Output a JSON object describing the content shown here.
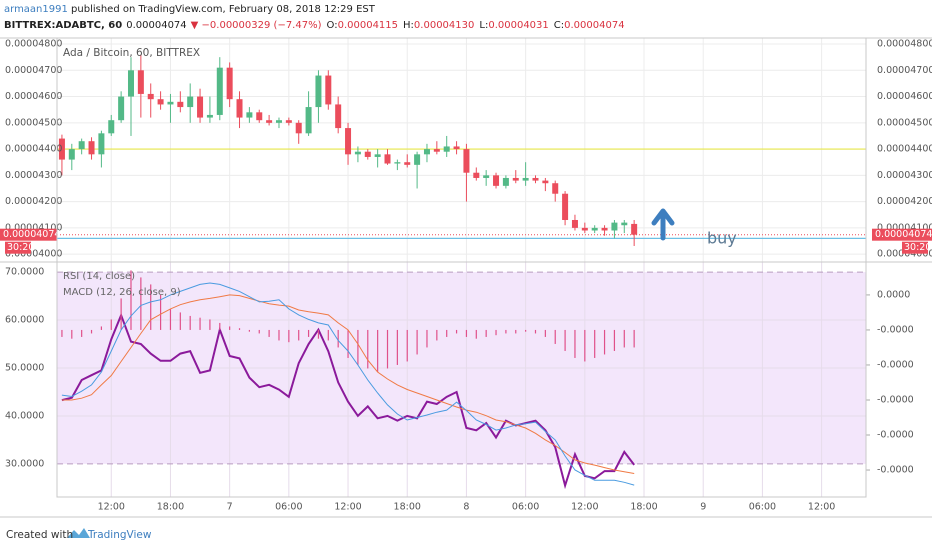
{
  "header": {
    "author": "armaan1991",
    "published": " published on TradingView.com, February 08, 2018 12:29 EST",
    "quote": {
      "symbol": "BITTREX:ADABTC, 60",
      "last": "0.00004074",
      "change": "▼ −0.00000329 (−7.47%)",
      "fields": [
        {
          "label": "O:",
          "value": "0.00004115"
        },
        {
          "label": "H:",
          "value": "0.00004130"
        },
        {
          "label": "L:",
          "value": "0.00004031"
        },
        {
          "label": "C:",
          "value": "0.00004074"
        }
      ]
    }
  },
  "footer": {
    "created": "Created with",
    "brand": "TradingView"
  },
  "chart_data": [
    {
      "type": "candlestick",
      "title": "Ada / Bitcoin, 60, BITTREX",
      "countdown": "30:20",
      "annotations": [
        {
          "text": "buy"
        }
      ],
      "categories": [
        null,
        null,
        null,
        null,
        null,
        "12:00",
        null,
        null,
        null,
        null,
        null,
        "18:00",
        null,
        null,
        null,
        null,
        null,
        "7",
        null,
        null,
        null,
        null,
        null,
        "06:00",
        null,
        null,
        null,
        null,
        null,
        "12:00",
        null,
        null,
        null,
        null,
        null,
        "18:00",
        null,
        null,
        null,
        null,
        null,
        "8",
        null,
        null,
        null,
        null,
        null,
        "06:00",
        null,
        null,
        null,
        null,
        null,
        "12:00",
        null,
        null,
        null,
        null,
        null,
        "18:00",
        null,
        null,
        null,
        null,
        null,
        "9",
        null,
        null,
        null,
        null,
        null,
        "06:00",
        null,
        null,
        null,
        null,
        null,
        "12:00",
        null,
        null,
        null,
        null
      ],
      "open": [
        4.44e-05,
        4.36e-05,
        4.4e-05,
        4.43e-05,
        4.38e-05,
        4.46e-05,
        4.51e-05,
        4.6e-05,
        4.7e-05,
        4.61e-05,
        4.59e-05,
        4.57e-05,
        4.58e-05,
        4.56e-05,
        4.6e-05,
        4.52e-05,
        4.53e-05,
        4.71e-05,
        4.59e-05,
        4.52e-05,
        4.54e-05,
        4.51e-05,
        4.5e-05,
        4.51e-05,
        4.5e-05,
        4.46e-05,
        4.56e-05,
        4.68e-05,
        4.57e-05,
        4.48e-05,
        4.38e-05,
        4.39e-05,
        4.37e-05,
        4.38e-05,
        4.345e-05,
        4.35e-05,
        4.34e-05,
        4.38e-05,
        4.4e-05,
        4.39e-05,
        4.41e-05,
        4.4e-05,
        4.31e-05,
        4.29e-05,
        4.3e-05,
        4.26e-05,
        4.29e-05,
        4.28e-05,
        4.29e-05,
        4.28e-05,
        4.27e-05,
        4.23e-05,
        4.13e-05,
        4.1e-05,
        4.09e-05,
        4.1e-05,
        4.09e-05,
        4.11e-05,
        4.115e-05,
        null,
        null,
        null,
        null,
        null,
        null,
        null,
        null,
        null,
        null,
        null,
        null,
        null,
        null,
        null,
        null,
        null,
        null,
        null,
        null,
        null,
        null,
        null
      ],
      "high": [
        4.455e-05,
        4.42e-05,
        4.44e-05,
        4.445e-05,
        4.47e-05,
        4.53e-05,
        4.62e-05,
        4.75e-05,
        4.76e-05,
        4.65e-05,
        4.62e-05,
        4.61e-05,
        4.62e-05,
        4.65e-05,
        4.63e-05,
        4.6e-05,
        4.75e-05,
        4.73e-05,
        4.62e-05,
        4.56e-05,
        4.55e-05,
        4.53e-05,
        4.52e-05,
        4.52e-05,
        4.51e-05,
        4.62e-05,
        4.7e-05,
        4.7e-05,
        4.6e-05,
        4.5e-05,
        4.41e-05,
        4.4e-05,
        4.4e-05,
        4.4e-05,
        4.36e-05,
        4.38e-05,
        4.39e-05,
        4.42e-05,
        4.43e-05,
        4.45e-05,
        4.43e-05,
        4.42e-05,
        4.33e-05,
        4.32e-05,
        4.31e-05,
        4.3e-05,
        4.32e-05,
        4.35e-05,
        4.3e-05,
        4.29e-05,
        4.28e-05,
        4.24e-05,
        4.15e-05,
        4.12e-05,
        4.11e-05,
        4.11e-05,
        4.13e-05,
        4.13e-05,
        4.13e-05,
        null,
        null,
        null,
        null,
        null,
        null,
        null,
        null,
        null,
        null,
        null,
        null,
        null,
        null,
        null,
        null,
        null,
        null,
        null,
        null,
        null,
        null,
        null
      ],
      "low": [
        4.3e-05,
        4.32e-05,
        4.38e-05,
        4.36e-05,
        4.33e-05,
        4.45e-05,
        4.5e-05,
        4.45e-05,
        4.52e-05,
        4.52e-05,
        4.55e-05,
        4.5e-05,
        4.54e-05,
        4.5e-05,
        4.5e-05,
        4.5e-05,
        4.51e-05,
        4.56e-05,
        4.48e-05,
        4.5e-05,
        4.5e-05,
        4.49e-05,
        4.48e-05,
        4.49e-05,
        4.42e-05,
        4.45e-05,
        4.5e-05,
        4.55e-05,
        4.46e-05,
        4.34e-05,
        4.35e-05,
        4.36e-05,
        4.33e-05,
        4.34e-05,
        4.32e-05,
        4.33e-05,
        4.25e-05,
        4.35e-05,
        4.38e-05,
        4.37e-05,
        4.38e-05,
        4.2e-05,
        4.28e-05,
        4.26e-05,
        4.25e-05,
        4.25e-05,
        4.27e-05,
        4.26e-05,
        4.27e-05,
        4.24e-05,
        4.2e-05,
        4.11e-05,
        4.09e-05,
        4.08e-05,
        4.08e-05,
        4.07e-05,
        4.06e-05,
        4.08e-05,
        4.031e-05,
        null,
        null,
        null,
        null,
        null,
        null,
        null,
        null,
        null,
        null,
        null,
        null,
        null,
        null,
        null,
        null,
        null,
        null,
        null,
        null,
        null,
        null,
        null
      ],
      "close": [
        4.36e-05,
        4.4e-05,
        4.43e-05,
        4.38e-05,
        4.46e-05,
        4.51e-05,
        4.6e-05,
        4.7e-05,
        4.61e-05,
        4.59e-05,
        4.57e-05,
        4.58e-05,
        4.56e-05,
        4.6e-05,
        4.52e-05,
        4.53e-05,
        4.71e-05,
        4.59e-05,
        4.52e-05,
        4.54e-05,
        4.51e-05,
        4.5e-05,
        4.51e-05,
        4.5e-05,
        4.46e-05,
        4.56e-05,
        4.68e-05,
        4.57e-05,
        4.48e-05,
        4.38e-05,
        4.39e-05,
        4.37e-05,
        4.38e-05,
        4.345e-05,
        4.35e-05,
        4.34e-05,
        4.38e-05,
        4.4e-05,
        4.39e-05,
        4.41e-05,
        4.4e-05,
        4.31e-05,
        4.29e-05,
        4.3e-05,
        4.26e-05,
        4.29e-05,
        4.28e-05,
        4.29e-05,
        4.28e-05,
        4.27e-05,
        4.23e-05,
        4.13e-05,
        4.1e-05,
        4.09e-05,
        4.1e-05,
        4.09e-05,
        4.12e-05,
        4.12e-05,
        4.074e-05,
        null,
        null,
        null,
        null,
        null,
        null,
        null,
        null,
        null,
        null,
        null,
        null,
        null,
        null,
        null,
        null,
        null,
        null,
        null,
        null,
        null,
        null,
        null
      ],
      "up_color": "#53b987",
      "down_color": "#eb4d5c",
      "hlines": [
        {
          "value": 4.4e-05,
          "color": "#e8e84a"
        },
        {
          "value": 4.06e-05,
          "color": "#6cc0e5"
        }
      ],
      "ylim": [
        3.97e-05,
        4.823e-05
      ],
      "yticks": [
        {
          "value": 4.8e-05,
          "label": "0.00004800"
        },
        {
          "value": 4.7e-05,
          "label": "0.00004700"
        },
        {
          "value": 4.6e-05,
          "label": "0.00004600"
        },
        {
          "value": 4.5e-05,
          "label": "0.00004500"
        },
        {
          "value": 4.4e-05,
          "label": "0.00004400"
        },
        {
          "value": 4.3e-05,
          "label": "0.00004300"
        },
        {
          "value": 4.2e-05,
          "label": "0.00004200"
        },
        {
          "value": 4.1e-05,
          "label": "0.00004100"
        },
        {
          "value": 4e-05,
          "label": "0.00004000"
        }
      ],
      "grid": true
    },
    {
      "type": "indicator",
      "series": [
        {
          "name": "RSI (14, close)",
          "color": "#8b1a9b",
          "values": [
            43.3,
            43.8,
            47.5,
            48.5,
            49.5,
            56,
            61,
            55.5,
            55,
            53,
            51.5,
            51.5,
            53,
            53.5,
            49,
            49.5,
            58,
            52.5,
            52,
            48,
            46,
            46.5,
            45.5,
            44,
            51,
            55,
            58,
            53.5,
            47,
            43,
            40,
            42,
            39.5,
            40,
            39,
            40,
            39.5,
            43,
            42.5,
            44,
            45,
            37.5,
            37,
            38.5,
            35.5,
            39,
            38,
            38.5,
            39,
            37,
            33.5,
            25.5,
            32,
            27.5,
            27,
            28.5,
            28.5,
            32.5,
            29.8,
            null,
            null,
            null,
            null,
            null,
            null,
            null,
            null,
            null,
            null,
            null,
            null,
            null,
            null,
            null,
            null,
            null,
            null,
            null,
            null,
            null,
            null,
            null
          ]
        },
        {
          "name": "MACD (12, 26, close, 9)",
          "axis": "y2",
          "color": "#4a9be0",
          "values": [
            -1.86e-06,
            -1.9e-06,
            -1.75e-06,
            -1.57e-06,
            -1.2e-06,
            -6e-07,
            0,
            4e-07,
            7e-07,
            8e-07,
            8.6e-07,
            1e-06,
            1.1e-06,
            1.2e-06,
            1.3e-06,
            1.34e-06,
            1.3e-06,
            1.2e-06,
            1.1e-06,
            9.5e-07,
            8e-07,
            8.2e-07,
            8.6e-07,
            6e-07,
            4.3e-07,
            3e-07,
            2e-07,
            1.4e-07,
            -3e-07,
            -6e-07,
            -1e-06,
            -1.43e-06,
            -1.8e-06,
            -2.14e-06,
            -2.4e-06,
            -2.57e-06,
            -2.5e-06,
            -2.43e-06,
            -2.35e-06,
            -2.29e-06,
            -2.06e-06,
            -2.3e-06,
            -2.57e-06,
            -2.7e-06,
            -2.86e-06,
            -2.8e-06,
            -2.71e-06,
            -2.68e-06,
            -2.63e-06,
            -2.9e-06,
            -3.14e-06,
            -3.6e-06,
            -4e-06,
            -4.15e-06,
            -4.29e-06,
            -4.29e-06,
            -4.29e-06,
            -4.35e-06,
            -4.43e-06,
            null,
            null,
            null,
            null,
            null,
            null,
            null,
            null,
            null,
            null,
            null,
            null,
            null,
            null,
            null,
            null,
            null,
            null,
            null,
            null,
            null,
            null,
            null
          ],
          "signal_color": "#f07a45",
          "signal": [
            -2e-06,
            -2e-06,
            -1.95e-06,
            -1.85e-06,
            -1.57e-06,
            -1.3e-06,
            -9e-07,
            -5e-07,
            -1e-07,
            2.9e-07,
            4.5e-07,
            6e-07,
            7.2e-07,
            8e-07,
            8.6e-07,
            9e-07,
            9.5e-07,
            1e-06,
            9.8e-07,
            9e-07,
            8.2e-07,
            7.5e-07,
            7.1e-07,
            6.8e-07,
            5.7e-07,
            5.2e-07,
            4.8e-07,
            4.3e-07,
            2e-07,
            0,
            -4e-07,
            -8.6e-07,
            -1.2e-06,
            -1.4e-06,
            -1.57e-06,
            -1.7e-06,
            -1.8e-06,
            -1.9e-06,
            -2e-06,
            -2.1e-06,
            -2.2e-06,
            -2.29e-06,
            -2.35e-06,
            -2.45e-06,
            -2.57e-06,
            -2.62e-06,
            -2.71e-06,
            -2.8e-06,
            -2.95e-06,
            -3.14e-06,
            -3.3e-06,
            -3.5e-06,
            -3.71e-06,
            -3.8e-06,
            -3.86e-06,
            -3.93e-06,
            -4e-06,
            -4.05e-06,
            -4.1e-06,
            null,
            null,
            null,
            null,
            null,
            null,
            null,
            null,
            null,
            null,
            null,
            null,
            null,
            null,
            null,
            null,
            null,
            null,
            null,
            null,
            null,
            null,
            null
          ],
          "histogram_color": "#e0508a",
          "histogram": [
            -2e-07,
            -2.5e-07,
            -2e-07,
            -1e-07,
            1e-07,
            3e-07,
            9e-07,
            1.7e-06,
            1.5e-06,
            1.3e-06,
            1e-06,
            6e-07,
            5e-07,
            4e-07,
            3.5e-07,
            3e-07,
            2e-07,
            1e-07,
            5e-08,
            -5e-08,
            -1e-07,
            -2e-07,
            -3e-07,
            -3.5e-07,
            -3e-07,
            -2e-07,
            -2.5e-07,
            -3e-07,
            -5e-07,
            -8e-07,
            -1e-06,
            -1.1e-06,
            -1.2e-06,
            -1.1e-06,
            -1e-06,
            -9e-07,
            -7e-07,
            -5e-07,
            -3e-07,
            -2e-07,
            -1e-07,
            -2e-07,
            -2.5e-07,
            -2e-07,
            -1.5e-07,
            -1e-07,
            -1e-07,
            -5e-08,
            -1e-07,
            -2e-07,
            -4e-07,
            -6e-07,
            -8e-07,
            -9e-07,
            -8e-07,
            -7e-07,
            -6e-07,
            -5e-07,
            -5e-07,
            null,
            null,
            null,
            null,
            null,
            null,
            null,
            null,
            null,
            null,
            null,
            null,
            null,
            null,
            null,
            null,
            null,
            null,
            null,
            null,
            null,
            null,
            null
          ]
        }
      ],
      "band_color": "#f3e6fb",
      "ylim": [
        23.1,
        72.1
      ],
      "yticks": [
        {
          "value": 70,
          "label": "70.0000"
        },
        {
          "value": 60,
          "label": "60.0000"
        },
        {
          "value": 50,
          "label": "50.0000"
        },
        {
          "value": 40,
          "label": "40.0000"
        },
        {
          "value": 30,
          "label": "30.0000"
        }
      ],
      "y2lim": [
        -4.77e-06,
        1.94e-06
      ],
      "y2ticks": [
        {
          "value": 1e-06,
          "label": "0.0000"
        },
        {
          "value": 0,
          "label": "-0.0000"
        },
        {
          "value": -1e-06,
          "label": "-0.0000"
        },
        {
          "value": -2e-06,
          "label": "-0.0000"
        },
        {
          "value": -3e-06,
          "label": "-0.0000"
        },
        {
          "value": -4e-06,
          "label": "-0.0000"
        }
      ],
      "grid": true
    }
  ]
}
